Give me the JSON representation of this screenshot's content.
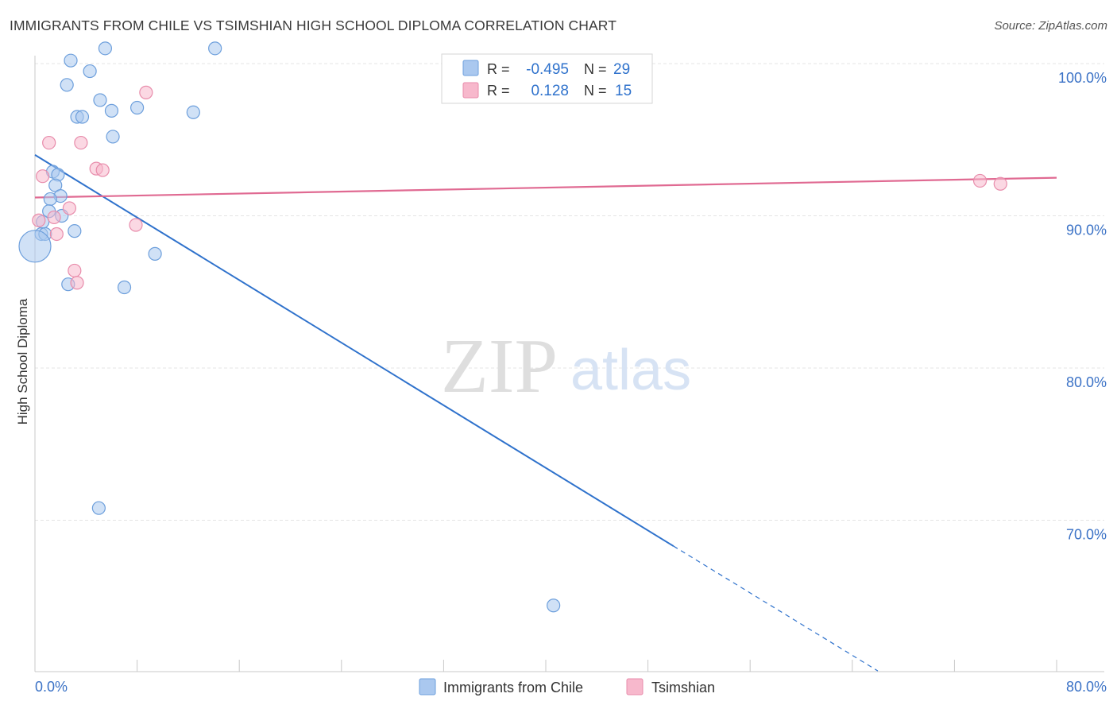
{
  "title": "IMMIGRANTS FROM CHILE VS TSIMSHIAN HIGH SCHOOL DIPLOMA CORRELATION CHART",
  "source": "Source: ZipAtlas.com",
  "watermark": {
    "zip": "ZIP",
    "atlas": "atlas"
  },
  "colors": {
    "chile_fill": "#aac8ef",
    "chile_stroke": "#6d9fdc",
    "chile_line": "#2f72cc",
    "tsim_fill": "#f7b8cc",
    "tsim_stroke": "#e88cab",
    "tsim_line": "#e06a92",
    "tick_label": "#3b72c6",
    "grid": "#e4e4e4"
  },
  "legend": {
    "rows": [
      {
        "r_label": "R =",
        "r_value": "-0.495",
        "n_label": "N =",
        "n_value": "29"
      },
      {
        "r_label": "R =",
        "r_value": "0.128",
        "n_label": "N =",
        "n_value": "15"
      }
    ]
  },
  "chart_data": {
    "type": "scatter",
    "title": "IMMIGRANTS FROM CHILE VS TSIMSHIAN HIGH SCHOOL DIPLOMA CORRELATION CHART",
    "xlabel": "",
    "ylabel": "High School Diploma",
    "xlim": [
      0,
      80
    ],
    "ylim": [
      62,
      102
    ],
    "x_tick_labels": [
      "0.0%",
      "80.0%"
    ],
    "y_ticks": [
      100,
      90,
      80,
      70
    ],
    "y_tick_labels": [
      "100.0%",
      "90.0%",
      "80.0%",
      "70.0%"
    ],
    "grid": true,
    "legend_position": "bottom-center",
    "series": [
      {
        "name": "Immigrants from Chile",
        "points": [
          {
            "x": 5.5,
            "y": 101.0
          },
          {
            "x": 14.1,
            "y": 101.0
          },
          {
            "x": 2.8,
            "y": 100.2
          },
          {
            "x": 4.3,
            "y": 99.5
          },
          {
            "x": 2.5,
            "y": 98.6
          },
          {
            "x": 5.1,
            "y": 97.6
          },
          {
            "x": 8.0,
            "y": 97.1
          },
          {
            "x": 6.0,
            "y": 96.9
          },
          {
            "x": 12.4,
            "y": 96.8
          },
          {
            "x": 3.3,
            "y": 96.5
          },
          {
            "x": 3.7,
            "y": 96.5
          },
          {
            "x": 6.1,
            "y": 95.2
          },
          {
            "x": 1.4,
            "y": 92.9
          },
          {
            "x": 1.8,
            "y": 92.7
          },
          {
            "x": 1.6,
            "y": 92.0
          },
          {
            "x": 2.0,
            "y": 91.3
          },
          {
            "x": 1.2,
            "y": 91.1
          },
          {
            "x": 1.1,
            "y": 90.3
          },
          {
            "x": 2.1,
            "y": 90.0
          },
          {
            "x": 0.6,
            "y": 89.6
          },
          {
            "x": 3.1,
            "y": 89.0
          },
          {
            "x": 0.5,
            "y": 88.8
          },
          {
            "x": 0.8,
            "y": 88.8
          },
          {
            "x": 0.0,
            "y": 88.0,
            "size": "large"
          },
          {
            "x": 9.4,
            "y": 87.5
          },
          {
            "x": 2.6,
            "y": 85.5
          },
          {
            "x": 7.0,
            "y": 85.3
          },
          {
            "x": 5.0,
            "y": 70.8
          },
          {
            "x": 40.6,
            "y": 64.4
          }
        ],
        "trend": {
          "x_start": 0.0,
          "y_start": 94.0,
          "x_end": 50.0,
          "y_end": 68.3,
          "dashed_to_x": 66.0,
          "dashed_to_y": 60.1
        }
      },
      {
        "name": "Tsimshian",
        "points": [
          {
            "x": 8.7,
            "y": 98.1
          },
          {
            "x": 1.1,
            "y": 94.8
          },
          {
            "x": 3.6,
            "y": 94.8
          },
          {
            "x": 4.8,
            "y": 93.1
          },
          {
            "x": 5.3,
            "y": 93.0
          },
          {
            "x": 0.6,
            "y": 92.6
          },
          {
            "x": 74.0,
            "y": 92.3
          },
          {
            "x": 75.6,
            "y": 92.1
          },
          {
            "x": 2.7,
            "y": 90.5
          },
          {
            "x": 0.3,
            "y": 89.7
          },
          {
            "x": 1.5,
            "y": 89.9
          },
          {
            "x": 7.9,
            "y": 89.4
          },
          {
            "x": 1.7,
            "y": 88.8
          },
          {
            "x": 3.1,
            "y": 86.4
          },
          {
            "x": 3.3,
            "y": 85.6
          }
        ],
        "trend": {
          "x_start": 0.0,
          "y_start": 91.2,
          "x_end": 80.0,
          "y_end": 92.5
        }
      }
    ]
  }
}
